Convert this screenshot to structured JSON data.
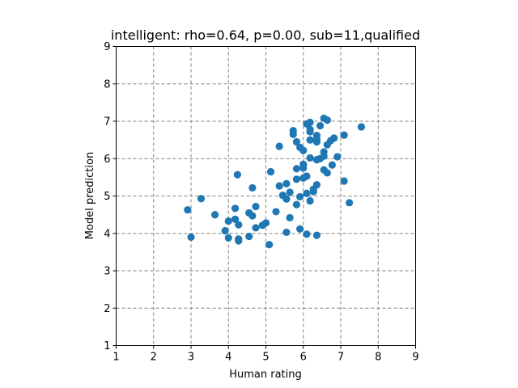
{
  "chart_data": {
    "type": "scatter",
    "title": "intelligent: rho=0.64, p=0.00, sub=11,qualified",
    "xlabel": "Human rating",
    "ylabel": "Model prediction",
    "xlim": [
      1,
      9
    ],
    "ylim": [
      1,
      9
    ],
    "xticks": [
      "1",
      "2",
      "3",
      "4",
      "5",
      "6",
      "7",
      "8",
      "9"
    ],
    "yticks": [
      "1",
      "2",
      "3",
      "4",
      "5",
      "6",
      "7",
      "8",
      "9"
    ],
    "grid": true,
    "marker_color": "#1f77b4",
    "points": [
      {
        "x": 2.91,
        "y": 4.63
      },
      {
        "x": 3.0,
        "y": 3.9
      },
      {
        "x": 3.27,
        "y": 4.93
      },
      {
        "x": 3.64,
        "y": 4.5
      },
      {
        "x": 3.91,
        "y": 4.07
      },
      {
        "x": 4.0,
        "y": 4.33
      },
      {
        "x": 4.0,
        "y": 3.88
      },
      {
        "x": 4.18,
        "y": 4.67
      },
      {
        "x": 4.18,
        "y": 4.38
      },
      {
        "x": 4.24,
        "y": 5.57
      },
      {
        "x": 4.27,
        "y": 4.23
      },
      {
        "x": 4.27,
        "y": 3.85
      },
      {
        "x": 4.27,
        "y": 3.8
      },
      {
        "x": 4.55,
        "y": 4.55
      },
      {
        "x": 4.55,
        "y": 3.92
      },
      {
        "x": 4.64,
        "y": 5.22
      },
      {
        "x": 4.64,
        "y": 4.47
      },
      {
        "x": 4.73,
        "y": 4.72
      },
      {
        "x": 4.73,
        "y": 4.15
      },
      {
        "x": 4.91,
        "y": 4.22
      },
      {
        "x": 5.0,
        "y": 4.28
      },
      {
        "x": 5.09,
        "y": 3.7
      },
      {
        "x": 5.13,
        "y": 5.65
      },
      {
        "x": 5.27,
        "y": 4.58
      },
      {
        "x": 5.36,
        "y": 5.27
      },
      {
        "x": 5.36,
        "y": 6.33
      },
      {
        "x": 5.45,
        "y": 5.02
      },
      {
        "x": 5.55,
        "y": 5.33
      },
      {
        "x": 5.55,
        "y": 4.92
      },
      {
        "x": 5.55,
        "y": 4.03
      },
      {
        "x": 5.64,
        "y": 5.1
      },
      {
        "x": 5.64,
        "y": 4.42
      },
      {
        "x": 5.73,
        "y": 6.75
      },
      {
        "x": 5.73,
        "y": 6.65
      },
      {
        "x": 5.82,
        "y": 6.45
      },
      {
        "x": 5.82,
        "y": 5.73
      },
      {
        "x": 5.82,
        "y": 5.45
      },
      {
        "x": 5.82,
        "y": 4.77
      },
      {
        "x": 5.91,
        "y": 6.3
      },
      {
        "x": 5.91,
        "y": 4.98
      },
      {
        "x": 5.91,
        "y": 4.12
      },
      {
        "x": 6.0,
        "y": 6.22
      },
      {
        "x": 6.0,
        "y": 5.85
      },
      {
        "x": 6.0,
        "y": 5.75
      },
      {
        "x": 6.0,
        "y": 5.48
      },
      {
        "x": 6.09,
        "y": 6.93
      },
      {
        "x": 6.09,
        "y": 5.53
      },
      {
        "x": 6.09,
        "y": 5.07
      },
      {
        "x": 6.09,
        "y": 3.98
      },
      {
        "x": 6.18,
        "y": 6.97
      },
      {
        "x": 6.18,
        "y": 6.78
      },
      {
        "x": 6.18,
        "y": 6.72
      },
      {
        "x": 6.18,
        "y": 6.5
      },
      {
        "x": 6.18,
        "y": 6.02
      },
      {
        "x": 6.18,
        "y": 4.87
      },
      {
        "x": 6.27,
        "y": 5.18
      },
      {
        "x": 6.27,
        "y": 5.12
      },
      {
        "x": 6.36,
        "y": 6.62
      },
      {
        "x": 6.36,
        "y": 6.52
      },
      {
        "x": 6.36,
        "y": 6.45
      },
      {
        "x": 6.36,
        "y": 5.97
      },
      {
        "x": 6.36,
        "y": 5.3
      },
      {
        "x": 6.36,
        "y": 3.95
      },
      {
        "x": 6.45,
        "y": 6.88
      },
      {
        "x": 6.45,
        "y": 6.0
      },
      {
        "x": 6.55,
        "y": 7.08
      },
      {
        "x": 6.55,
        "y": 6.18
      },
      {
        "x": 6.55,
        "y": 6.07
      },
      {
        "x": 6.55,
        "y": 5.7
      },
      {
        "x": 6.64,
        "y": 7.03
      },
      {
        "x": 6.64,
        "y": 6.37
      },
      {
        "x": 6.64,
        "y": 5.62
      },
      {
        "x": 6.73,
        "y": 6.48
      },
      {
        "x": 6.77,
        "y": 5.83
      },
      {
        "x": 6.82,
        "y": 6.55
      },
      {
        "x": 6.91,
        "y": 6.05
      },
      {
        "x": 7.09,
        "y": 6.63
      },
      {
        "x": 7.09,
        "y": 5.4
      },
      {
        "x": 7.23,
        "y": 4.82
      },
      {
        "x": 7.55,
        "y": 6.85
      }
    ]
  }
}
